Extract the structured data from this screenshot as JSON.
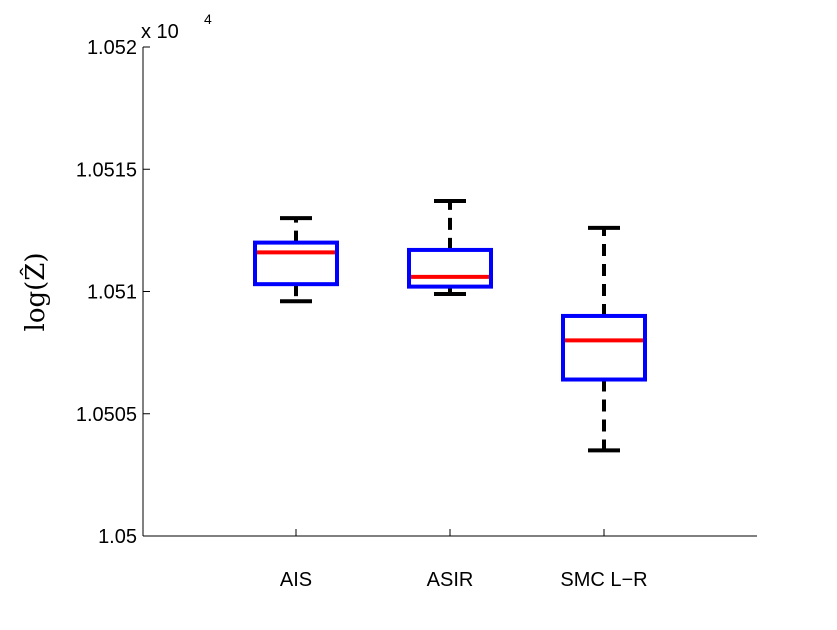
{
  "chart_data": {
    "type": "box",
    "categories": [
      "AIS",
      "ASIR",
      "SMC L−R"
    ],
    "ylabel": "log(Ẑ)",
    "y_multiplier": {
      "base": "x 10",
      "exponent": "4"
    },
    "ylim": [
      1.05,
      1.052
    ],
    "yticks": [
      1.05,
      1.0505,
      1.051,
      1.0515,
      1.052
    ],
    "ytick_labels": [
      "1.05",
      "1.0505",
      "1.051",
      "1.0515",
      "1.052"
    ],
    "grid": false,
    "boxes": [
      {
        "category": "AIS",
        "whisker_low": 1.05096,
        "q1": 1.05103,
        "median": 1.05116,
        "q3": 1.0512,
        "whisker_high": 1.0513
      },
      {
        "category": "ASIR",
        "whisker_low": 1.05099,
        "q1": 1.05102,
        "median": 1.05106,
        "q3": 1.05117,
        "whisker_high": 1.05137
      },
      {
        "category": "SMC L−R",
        "whisker_low": 1.05035,
        "q1": 1.05064,
        "median": 1.0508,
        "q3": 1.0509,
        "whisker_high": 1.05126
      }
    ],
    "colors": {
      "box": "#0000ff",
      "median": "#ff0000",
      "whisker": "#000000",
      "axis": "#000000"
    }
  }
}
